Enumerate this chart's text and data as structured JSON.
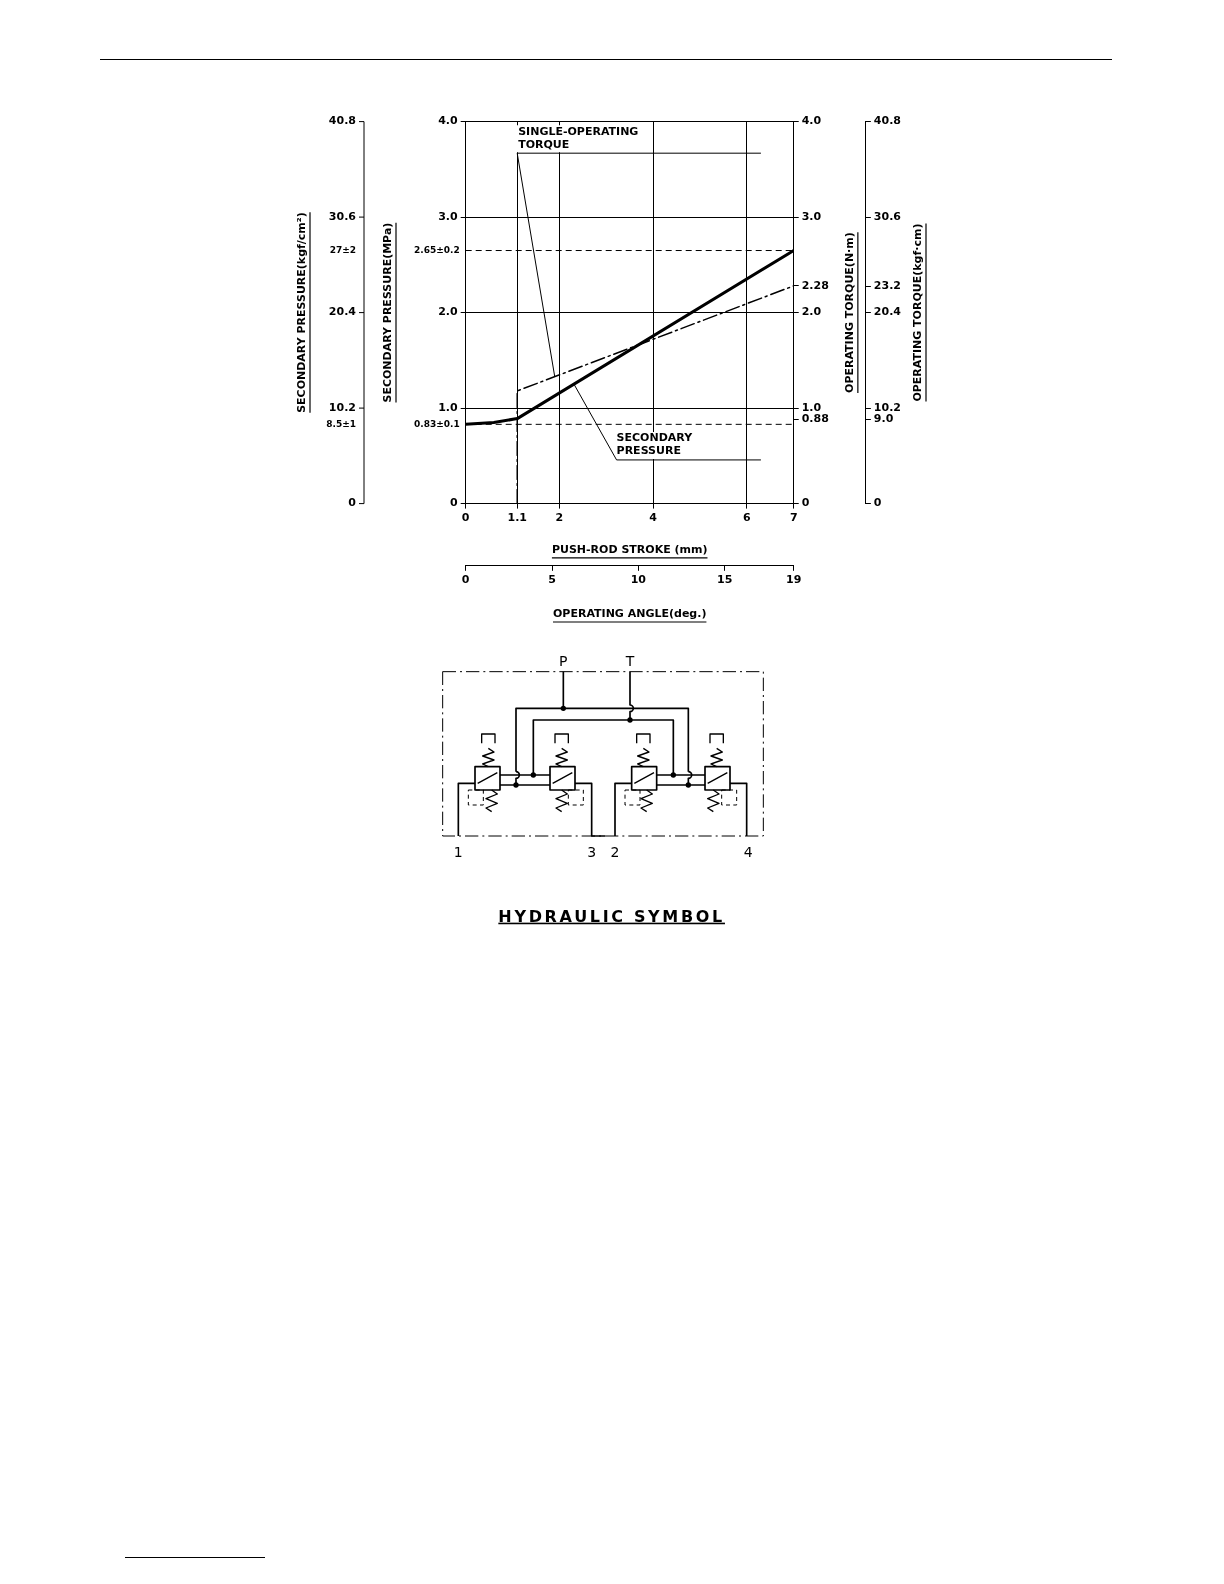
{
  "chart_data": {
    "type": "line",
    "xlabel": "PUSH-ROD STROKE (mm)",
    "x2label": "OPERATING ANGLE(deg.)",
    "ylabel": "SECONDARY PRESSURE(MPa)",
    "y2label": "OPERATING TORQUE(N·m)",
    "y3label": "OPERATING TORQUE(kgf·cm)",
    "xlim": [
      0,
      7
    ],
    "xticks": [
      0,
      1.1,
      2,
      4,
      6,
      7
    ],
    "x2lim": [
      0,
      19
    ],
    "x2ticks": [
      0,
      5,
      10,
      15,
      19
    ],
    "ylim": [
      0,
      4
    ],
    "yticks": [
      0,
      {
        "value": 1,
        "label": "1.0"
      },
      {
        "value": 2,
        "label": "2.0"
      },
      {
        "value": 3,
        "label": "3.0"
      },
      {
        "value": 4,
        "label": "4.0"
      }
    ],
    "y2lim": [
      0,
      4
    ],
    "y2ticks": [
      0,
      0.88,
      {
        "value": 1,
        "label": "1.0"
      },
      {
        "value": 2,
        "label": "2.0"
      },
      2.28,
      {
        "value": 3,
        "label": "3.0"
      },
      {
        "value": 4,
        "label": "4.0"
      }
    ],
    "y3lim": [
      0,
      40.8
    ],
    "y3ticks": [
      0,
      {
        "value": 9,
        "label": "9.0"
      },
      10.2,
      20.4,
      23.2,
      30.6,
      40.8
    ],
    "series": [
      {
        "color": "#000000",
        "x": [
          0,
          0.6,
          1.1,
          7
        ],
        "values": [
          0.83,
          0.85,
          0.89,
          2.65
        ]
      },
      {
        "color": "#000000",
        "line_style": "dashed",
        "x": [
          1.1,
          1.1,
          7
        ],
        "values": [
          0,
          1.18,
          2.28
        ]
      }
    ],
    "ref_lines": [
      {
        "axis": "y",
        "value": 0.83,
        "label": "0.83±0.1",
        "line_style": "dashed",
        "color": "#000000"
      },
      {
        "axis": "y",
        "value": 2.65,
        "label": "2.65±0.2",
        "line_style": "dashed",
        "color": "#000000"
      }
    ],
    "annotations": [
      {
        "text": "SINGLE-OPERATING TORQUE",
        "x": 1.9,
        "y": 1.33
      },
      {
        "text": "SECONDARY PRESSURE",
        "x": 2.3,
        "y": 1.26
      },
      "SECONDARY PRESSURE(kgf/cm²)",
      "0",
      "8.5±1",
      "10.2",
      "20.4",
      "27±2",
      "30.6",
      "40.8",
      "P",
      "T",
      "1",
      "3",
      "2",
      "4",
      "HYDRAULIC SYMBOL"
    ],
    "grid": true,
    "legend": false,
    "marker": "none"
  }
}
